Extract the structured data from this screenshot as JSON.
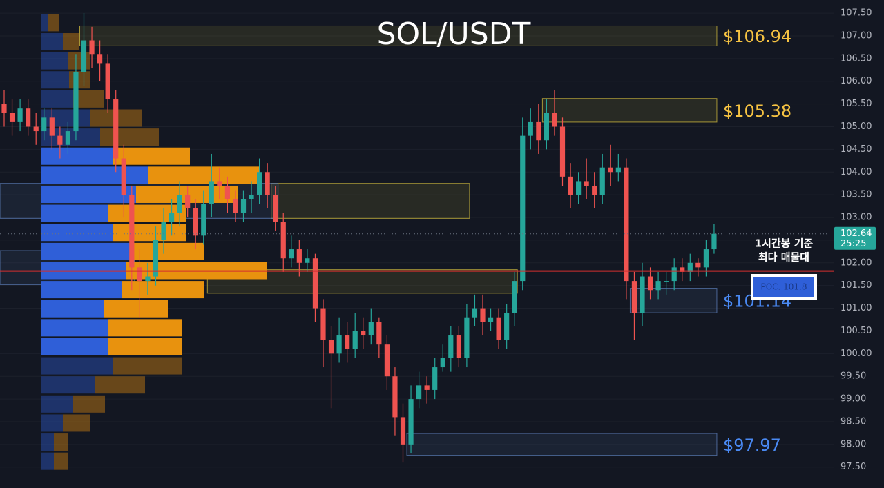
{
  "chart_data": {
    "type": "candlestick",
    "title": "SOL/USDT",
    "ylim": [
      97.04,
      107.79
    ],
    "yticks": [
      {
        "value": 97.5,
        "label": "97.50"
      },
      {
        "value": 98.0,
        "label": "98.00"
      },
      {
        "value": 98.5,
        "label": "98.50"
      },
      {
        "value": 99.0,
        "label": "99.00"
      },
      {
        "value": 99.5,
        "label": "99.50"
      },
      {
        "value": 100.0,
        "label": "100.00"
      },
      {
        "value": 100.5,
        "label": "100.50"
      },
      {
        "value": 101.0,
        "label": "101.00"
      },
      {
        "value": 101.5,
        "label": "101.50"
      },
      {
        "value": 102.0,
        "label": "102.00"
      },
      {
        "value": 102.5,
        "label": "102.50"
      },
      {
        "value": 103.0,
        "label": "103.00"
      },
      {
        "value": 103.5,
        "label": "103.50"
      },
      {
        "value": 104.0,
        "label": "104.00"
      },
      {
        "value": 104.5,
        "label": "104.50"
      },
      {
        "value": 105.0,
        "label": "105.00"
      },
      {
        "value": 105.5,
        "label": "105.50"
      },
      {
        "value": 106.0,
        "label": "106.00"
      },
      {
        "value": 106.5,
        "label": "106.50"
      },
      {
        "value": 107.0,
        "label": "107.00"
      },
      {
        "value": 107.5,
        "label": "107.50"
      }
    ],
    "grid": true,
    "up_color": "#26a69a",
    "down_color": "#ef5350",
    "candles": {
      "open": [
        105.5,
        105.3,
        105.1,
        105.4,
        105.0,
        104.9,
        105.2,
        104.8,
        104.6,
        104.9,
        106.2,
        106.9,
        106.6,
        106.4,
        105.6,
        104.3,
        103.5,
        101.9,
        101.6,
        101.7,
        102.5,
        102.9,
        103.1,
        103.5,
        103.2,
        102.6,
        103.3,
        103.8,
        103.7,
        103.4,
        103.1,
        103.4,
        103.5,
        104.0,
        103.5,
        102.9,
        102.1,
        102.3,
        102.0,
        102.1,
        101.0,
        100.3,
        100.0,
        100.4,
        100.1,
        100.5,
        100.4,
        100.7,
        100.2,
        99.5,
        98.6,
        98.0,
        99.0,
        99.3,
        99.2,
        99.7,
        99.9,
        100.4,
        99.9,
        100.8,
        101.0,
        100.7,
        100.8,
        100.3,
        100.9,
        101.6,
        104.8,
        105.1,
        104.7,
        105.3,
        105.0,
        103.9,
        103.5,
        103.8,
        103.7,
        103.5,
        104.1,
        104.0,
        104.1,
        101.6,
        100.9,
        101.7,
        101.4,
        101.6,
        101.6,
        101.9,
        101.8,
        102.0,
        101.9,
        102.3
      ],
      "high": [
        105.8,
        105.6,
        105.6,
        105.6,
        105.3,
        105.4,
        105.4,
        105.0,
        105.1,
        106.6,
        107.5,
        107.2,
        106.9,
        106.6,
        105.8,
        104.6,
        103.7,
        102.3,
        102.0,
        102.8,
        103.2,
        103.4,
        103.8,
        103.7,
        103.4,
        103.6,
        104.4,
        104.1,
        103.9,
        103.6,
        103.6,
        103.8,
        104.3,
        104.2,
        103.7,
        103.1,
        102.6,
        102.5,
        102.3,
        102.2,
        101.2,
        100.6,
        100.8,
        100.7,
        100.9,
        100.8,
        101.0,
        100.8,
        100.4,
        99.7,
        98.9,
        99.3,
        99.6,
        99.5,
        99.9,
        100.2,
        100.6,
        100.6,
        101.1,
        101.3,
        101.3,
        101.0,
        101.0,
        101.1,
        101.8,
        105.2,
        105.4,
        105.5,
        105.6,
        105.8,
        105.2,
        104.2,
        104.0,
        104.3,
        104.0,
        104.4,
        104.6,
        104.4,
        104.3,
        101.8,
        102.0,
        101.9,
        101.8,
        101.8,
        102.1,
        102.1,
        102.2,
        102.1,
        102.5,
        102.85
      ],
      "low": [
        105.0,
        104.8,
        104.9,
        104.8,
        104.6,
        104.7,
        104.5,
        104.3,
        104.4,
        104.7,
        105.9,
        106.3,
        106.0,
        105.3,
        104.0,
        103.0,
        101.4,
        100.8,
        101.3,
        101.5,
        102.2,
        102.6,
        102.8,
        103.0,
        102.3,
        102.4,
        103.0,
        103.4,
        103.1,
        102.9,
        102.9,
        103.1,
        103.3,
        103.2,
        102.7,
        101.8,
        101.9,
        101.7,
        101.8,
        100.7,
        99.7,
        98.8,
        99.8,
        99.8,
        99.9,
        100.1,
        100.2,
        99.9,
        99.2,
        98.2,
        97.6,
        97.8,
        98.8,
        98.9,
        99.0,
        99.6,
        99.6,
        99.7,
        99.7,
        100.6,
        100.4,
        100.5,
        100.1,
        100.1,
        100.6,
        101.4,
        104.5,
        104.4,
        104.5,
        104.8,
        103.7,
        103.2,
        103.3,
        103.4,
        103.2,
        103.3,
        103.7,
        103.8,
        101.2,
        100.3,
        100.6,
        101.2,
        101.2,
        101.3,
        101.4,
        101.6,
        101.6,
        101.7,
        101.7,
        102.2
      ],
      "close": [
        105.3,
        105.1,
        105.4,
        105.0,
        104.9,
        105.2,
        104.8,
        104.6,
        104.9,
        106.2,
        106.9,
        106.6,
        106.4,
        105.6,
        104.3,
        103.5,
        101.9,
        101.6,
        101.7,
        102.5,
        102.9,
        103.1,
        103.5,
        103.2,
        102.6,
        103.3,
        103.8,
        103.7,
        103.4,
        103.1,
        103.4,
        103.5,
        104.0,
        103.5,
        102.9,
        102.1,
        102.3,
        102.0,
        102.1,
        101.0,
        100.3,
        100.0,
        100.4,
        100.1,
        100.5,
        100.4,
        100.7,
        100.2,
        99.5,
        98.6,
        98.0,
        99.0,
        99.3,
        99.2,
        99.7,
        99.9,
        100.4,
        99.9,
        100.8,
        101.0,
        100.7,
        100.8,
        100.3,
        100.9,
        101.6,
        104.8,
        105.1,
        104.7,
        105.3,
        105.0,
        103.9,
        103.5,
        103.8,
        103.7,
        103.5,
        104.1,
        104.0,
        104.1,
        101.6,
        100.9,
        101.7,
        101.4,
        101.6,
        101.6,
        101.9,
        101.8,
        102.0,
        101.9,
        102.3,
        102.64
      ]
    },
    "volume_profile": {
      "buy_color": "#2f5fd8",
      "sell_color": "#e8920e",
      "value_area": [
        100.0,
        104.5
      ],
      "prices": [
        107.29,
        106.87,
        106.45,
        106.03,
        105.61,
        105.19,
        104.77,
        104.35,
        103.93,
        103.51,
        103.09,
        102.67,
        102.25,
        101.83,
        101.41,
        100.99,
        100.57,
        100.15,
        99.73,
        99.31,
        98.89,
        98.47,
        98.05,
        97.63
      ],
      "buy": [
        11,
        32,
        39,
        41,
        46,
        71,
        86,
        104,
        156,
        138,
        98,
        104,
        131,
        123,
        118,
        91,
        98,
        98,
        104,
        78,
        46,
        32,
        19,
        19
      ],
      "sell": [
        15,
        24,
        32,
        30,
        45,
        75,
        85,
        112,
        160,
        148,
        113,
        107,
        105,
        205,
        118,
        93,
        106,
        106,
        100,
        73,
        47,
        40,
        20,
        20
      ]
    },
    "zones": [
      {
        "label": "$106.94",
        "top": 107.22,
        "bottom": 106.78,
        "start": 10,
        "end": 89,
        "color": "#c8b43c",
        "label_color": "#f5c242"
      },
      {
        "label": "$105.38",
        "top": 105.62,
        "bottom": 105.1,
        "start": 68,
        "end": 89,
        "color": "#c8b43c",
        "label_color": "#f5c242"
      },
      {
        "top": 103.75,
        "bottom": 102.98,
        "start": 34,
        "end": 58,
        "color": "#c8b43c"
      },
      {
        "top": 103.75,
        "bottom": 102.98,
        "start": 0,
        "end": 34,
        "color": "#5a7ab4"
      },
      {
        "top": 102.27,
        "bottom": 101.52,
        "start": 0,
        "end": 16,
        "color": "#5a7ab4"
      },
      {
        "top": 101.85,
        "bottom": 101.33,
        "start": 26,
        "end": 64,
        "color": "#c8b43c"
      },
      {
        "label": "$101.14",
        "top": 101.44,
        "bottom": 100.9,
        "start": 79,
        "end": 89,
        "color": "#5a7ab4",
        "label_color": "#4a8af4"
      },
      {
        "label": "$97.97",
        "top": 98.24,
        "bottom": 97.76,
        "start": 51,
        "end": 89,
        "color": "#5a7ab4",
        "label_color": "#4a8af4"
      }
    ],
    "poc": {
      "value": 101.82,
      "label": "POC. 101.8",
      "color": "#d32f2f"
    },
    "annotation": [
      "1시간봉 기준",
      "최다 매물대"
    ],
    "last_price": 102.64,
    "countdown": "25:25"
  }
}
